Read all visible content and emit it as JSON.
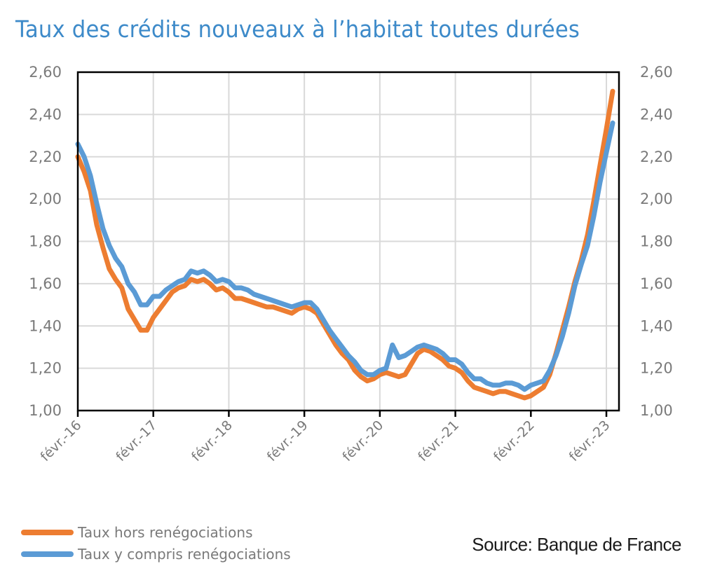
{
  "title": "Taux des crédits nouveaux à l’habitat toutes durées",
  "source": "Source: Banque de France",
  "legend": [
    {
      "label": "Taux hors renégociations",
      "color": "#ed7d31"
    },
    {
      "label": "Taux y compris renégociations",
      "color": "#5b9bd5"
    }
  ],
  "chart_data": {
    "type": "line",
    "title": "Taux des crédits nouveaux à l’habitat toutes durées",
    "xlabel": "",
    "ylabel": "",
    "ylim": [
      1.0,
      2.6
    ],
    "yticks": [
      "1,00",
      "1,20",
      "1,40",
      "1,60",
      "1,80",
      "2,00",
      "2,20",
      "2,40",
      "2,60"
    ],
    "y_axes": "left and right, identical",
    "xticks": [
      "févr.-16",
      "févr.-17",
      "févr.-18",
      "févr.-19",
      "févr.-20",
      "févr.-21",
      "févr.-22",
      "févr.-23"
    ],
    "x_frequency": "monthly, févr.-16 to févr.-23",
    "grid": true,
    "legend_position": "bottom-left",
    "series": [
      {
        "name": "Taux hors renégociations",
        "color": "#ed7d31",
        "values": [
          2.2,
          2.13,
          2.04,
          1.88,
          1.77,
          1.67,
          1.62,
          1.58,
          1.48,
          1.43,
          1.38,
          1.38,
          1.44,
          1.48,
          1.52,
          1.56,
          1.58,
          1.59,
          1.62,
          1.61,
          1.62,
          1.6,
          1.57,
          1.58,
          1.56,
          1.53,
          1.53,
          1.52,
          1.51,
          1.5,
          1.49,
          1.49,
          1.48,
          1.47,
          1.46,
          1.48,
          1.49,
          1.48,
          1.46,
          1.41,
          1.36,
          1.31,
          1.27,
          1.24,
          1.19,
          1.16,
          1.14,
          1.15,
          1.17,
          1.18,
          1.17,
          1.16,
          1.17,
          1.22,
          1.27,
          1.29,
          1.28,
          1.26,
          1.24,
          1.21,
          1.2,
          1.18,
          1.14,
          1.11,
          1.1,
          1.09,
          1.08,
          1.09,
          1.09,
          1.08,
          1.07,
          1.06,
          1.07,
          1.09,
          1.11,
          1.17,
          1.27,
          1.38,
          1.49,
          1.61,
          1.71,
          1.83,
          1.99,
          2.16,
          2.33,
          2.51
        ]
      },
      {
        "name": "Taux y compris renégociations",
        "color": "#5b9bd5",
        "values": [
          2.26,
          2.2,
          2.11,
          1.98,
          1.86,
          1.78,
          1.72,
          1.68,
          1.6,
          1.56,
          1.5,
          1.5,
          1.54,
          1.54,
          1.57,
          1.59,
          1.61,
          1.62,
          1.66,
          1.65,
          1.66,
          1.64,
          1.61,
          1.62,
          1.61,
          1.58,
          1.58,
          1.57,
          1.55,
          1.54,
          1.53,
          1.52,
          1.51,
          1.5,
          1.49,
          1.5,
          1.51,
          1.51,
          1.48,
          1.43,
          1.38,
          1.34,
          1.3,
          1.26,
          1.23,
          1.19,
          1.17,
          1.17,
          1.19,
          1.2,
          1.31,
          1.25,
          1.26,
          1.28,
          1.3,
          1.31,
          1.3,
          1.29,
          1.27,
          1.24,
          1.24,
          1.22,
          1.18,
          1.15,
          1.15,
          1.13,
          1.12,
          1.12,
          1.13,
          1.13,
          1.12,
          1.1,
          1.12,
          1.13,
          1.14,
          1.19,
          1.26,
          1.35,
          1.46,
          1.59,
          1.69,
          1.78,
          1.92,
          2.08,
          2.22,
          2.36
        ]
      }
    ]
  }
}
